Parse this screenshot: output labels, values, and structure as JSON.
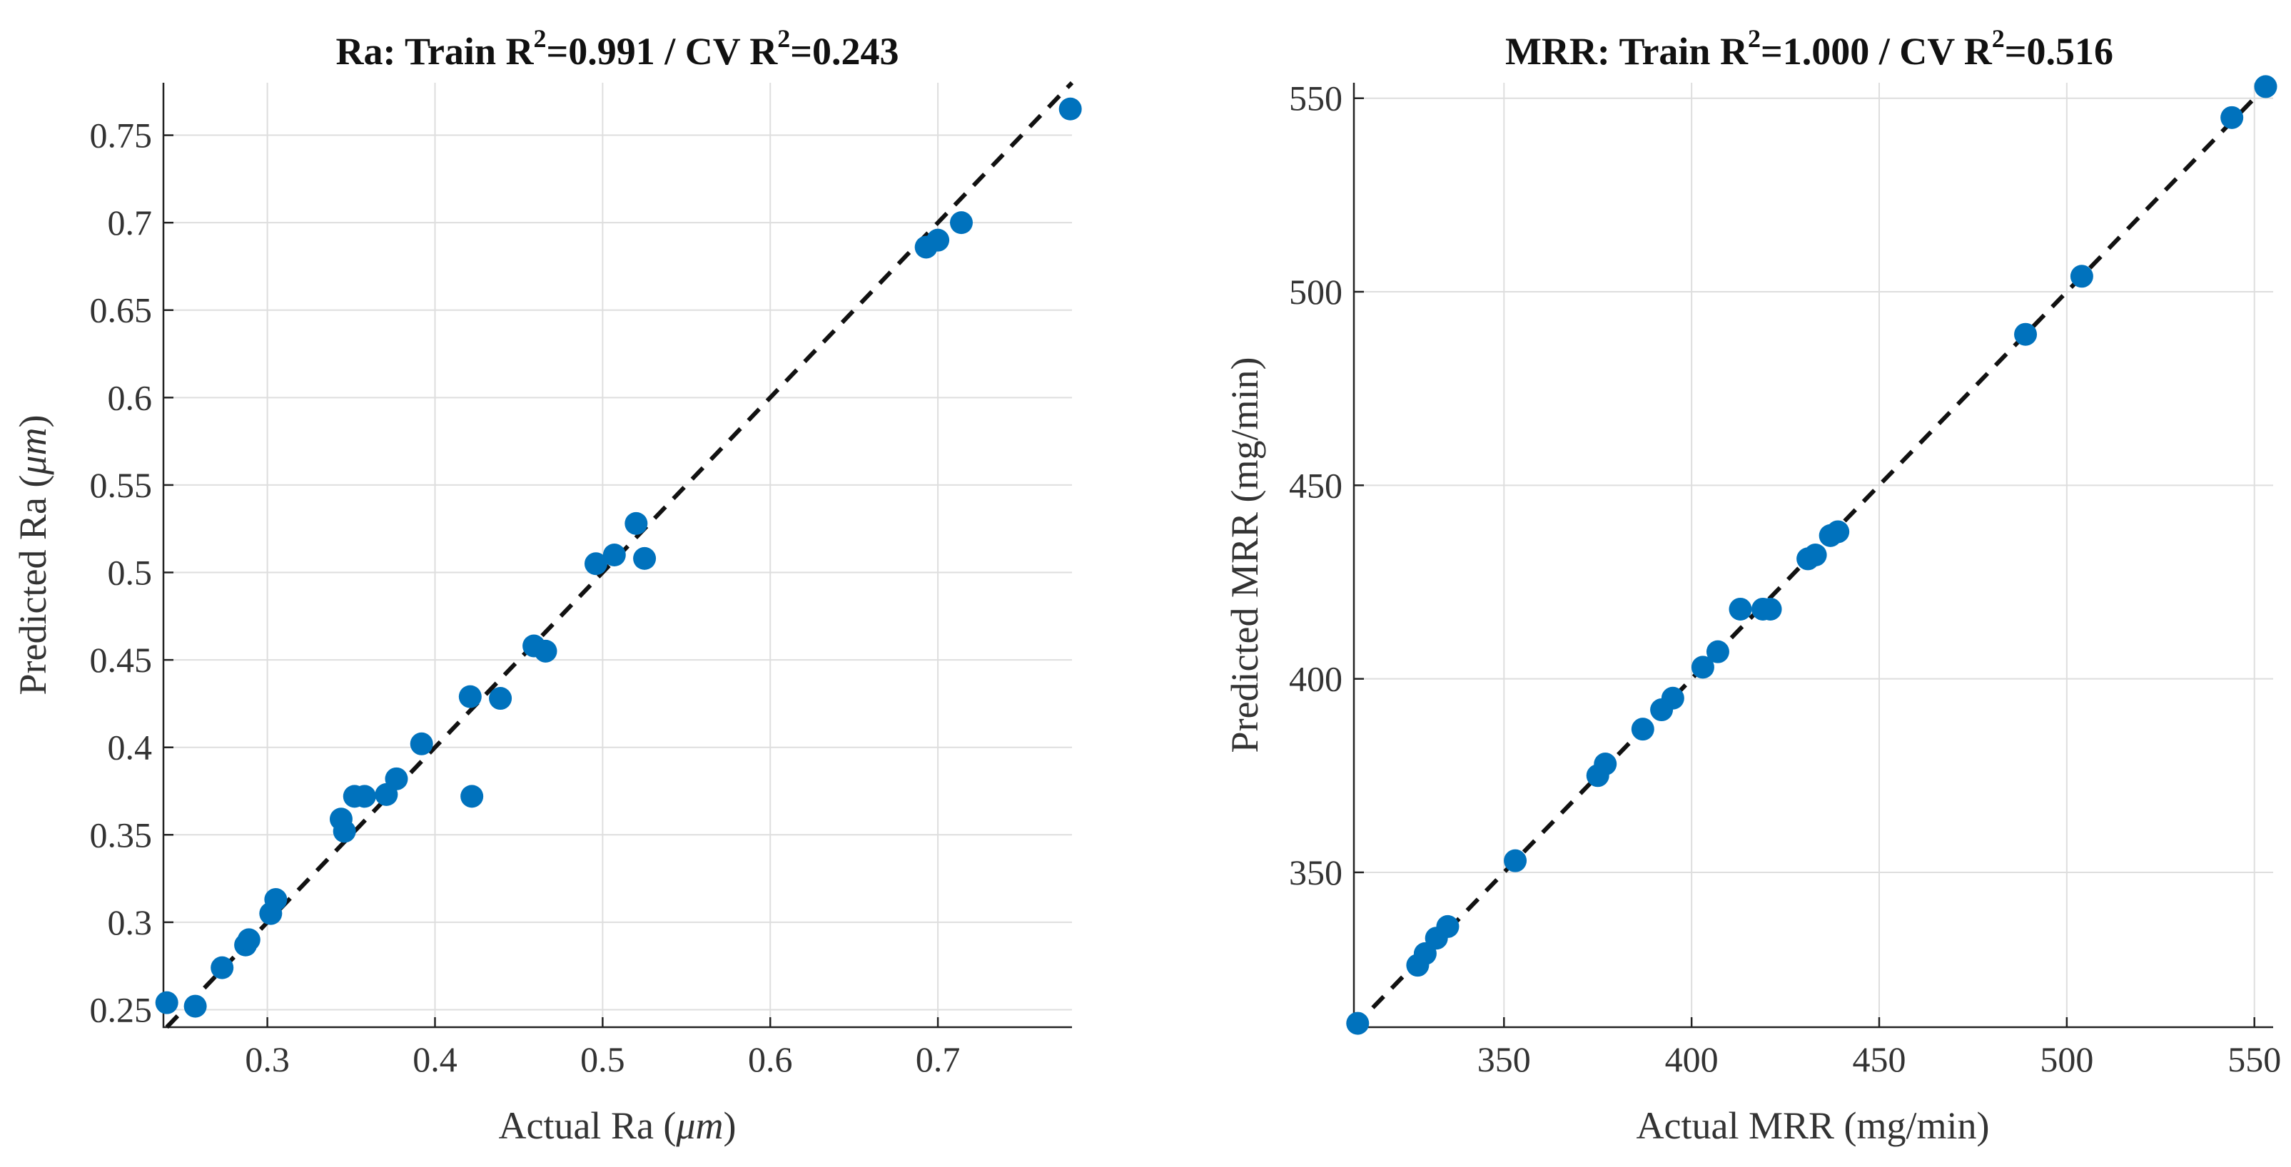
{
  "chart_data": [
    {
      "type": "scatter",
      "title": "Ra: Train R",
      "title_sup1": "2",
      "title_mid": "=0.991 / CV R",
      "title_sup2": "2",
      "title_end": "=0.243",
      "xlabel_pre": "Actual Ra (",
      "xlabel_unit": "μm",
      "xlabel_post": ")",
      "ylabel_pre": "Predicted Ra (",
      "ylabel_unit": "μm",
      "ylabel_post": ")",
      "xlim": [
        0.238,
        0.78
      ],
      "ylim": [
        0.24,
        0.78
      ],
      "xticks": [
        0.3,
        0.4,
        0.5,
        0.6,
        0.7
      ],
      "xtick_labels": [
        "0.3",
        "0.4",
        "0.5",
        "0.6",
        "0.7"
      ],
      "yticks": [
        0.25,
        0.3,
        0.35,
        0.4,
        0.45,
        0.5,
        0.55,
        0.6,
        0.65,
        0.7,
        0.75
      ],
      "ytick_labels": [
        "0.25",
        "0.3",
        "0.35",
        "0.4",
        "0.45",
        "0.5",
        "0.55",
        "0.6",
        "0.65",
        "0.7",
        "0.75"
      ],
      "grid": true,
      "reference_line": "y = x (dashed)",
      "marker_color": "#0072BD",
      "points": [
        [
          0.24,
          0.254
        ],
        [
          0.257,
          0.252
        ],
        [
          0.273,
          0.274
        ],
        [
          0.287,
          0.287
        ],
        [
          0.289,
          0.29
        ],
        [
          0.302,
          0.305
        ],
        [
          0.305,
          0.313
        ],
        [
          0.344,
          0.359
        ],
        [
          0.346,
          0.352
        ],
        [
          0.352,
          0.372
        ],
        [
          0.358,
          0.372
        ],
        [
          0.371,
          0.373
        ],
        [
          0.377,
          0.382
        ],
        [
          0.392,
          0.402
        ],
        [
          0.421,
          0.429
        ],
        [
          0.422,
          0.372
        ],
        [
          0.439,
          0.428
        ],
        [
          0.459,
          0.458
        ],
        [
          0.466,
          0.455
        ],
        [
          0.496,
          0.505
        ],
        [
          0.507,
          0.51
        ],
        [
          0.52,
          0.528
        ],
        [
          0.525,
          0.508
        ],
        [
          0.693,
          0.686
        ],
        [
          0.7,
          0.69
        ],
        [
          0.714,
          0.7
        ],
        [
          0.779,
          0.765
        ]
      ]
    },
    {
      "type": "scatter",
      "title": "MRR: Train R",
      "title_sup1": "2",
      "title_mid": "=1.000 / CV R",
      "title_sup2": "2",
      "title_end": "=0.516",
      "xlabel": "Actual MRR (mg/min)",
      "ylabel": "Predicted MRR (mg/min)",
      "xlim": [
        310,
        555
      ],
      "ylim": [
        310,
        554
      ],
      "xticks": [
        350,
        400,
        450,
        500,
        550
      ],
      "xtick_labels": [
        "350",
        "400",
        "450",
        "500",
        "550"
      ],
      "yticks": [
        350,
        400,
        450,
        500,
        550
      ],
      "ytick_labels": [
        "350",
        "400",
        "450",
        "500",
        "550"
      ],
      "grid": true,
      "reference_line": "y = x (dashed)",
      "marker_color": "#0072BD",
      "points": [
        [
          311,
          311
        ],
        [
          327,
          326
        ],
        [
          329,
          329
        ],
        [
          332,
          333
        ],
        [
          335,
          336
        ],
        [
          353,
          353
        ],
        [
          375,
          375
        ],
        [
          377,
          378
        ],
        [
          387,
          387
        ],
        [
          392,
          392
        ],
        [
          395,
          395
        ],
        [
          403,
          403
        ],
        [
          407,
          407
        ],
        [
          413,
          418
        ],
        [
          419,
          418
        ],
        [
          421,
          418
        ],
        [
          431,
          431
        ],
        [
          433,
          432
        ],
        [
          437,
          437
        ],
        [
          439,
          438
        ],
        [
          489,
          489
        ],
        [
          504,
          504
        ],
        [
          544,
          545
        ],
        [
          553,
          553
        ]
      ]
    }
  ]
}
